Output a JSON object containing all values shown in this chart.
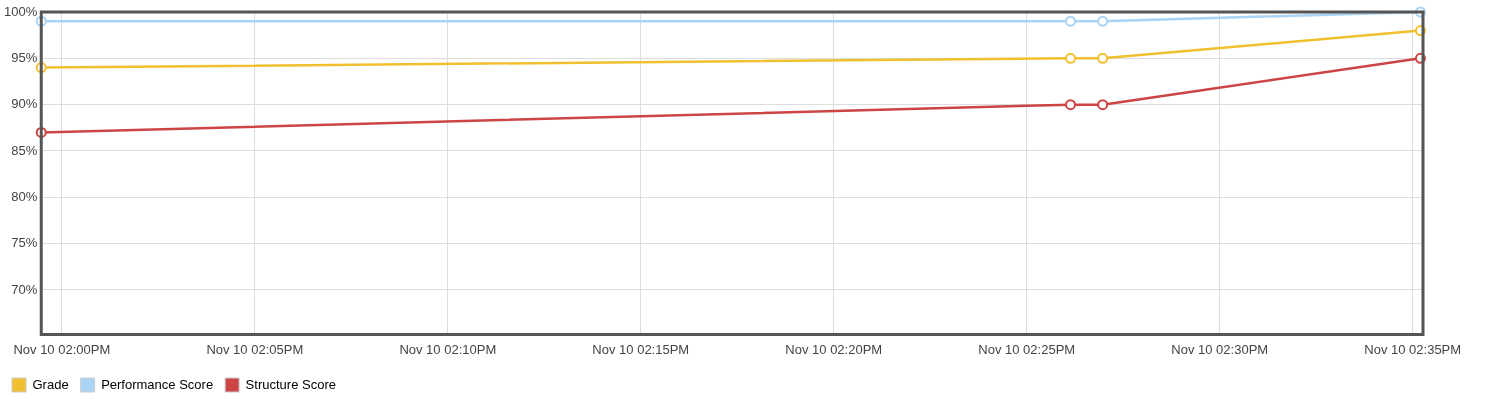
{
  "chart_data": {
    "type": "line",
    "x": [
      "--11-10T13:59:28",
      "--11-10T14:26:08",
      "--11-10T14:26:58",
      "--11-10T14:35:12"
    ],
    "series": [
      {
        "name": "Grade",
        "color": "#f0c030",
        "values": [
          94,
          95,
          95,
          98
        ]
      },
      {
        "name": "Performance Score",
        "color": "#aad4f5",
        "values": [
          99,
          99,
          99,
          100
        ]
      },
      {
        "name": "Structure Score",
        "color": "#cc4444",
        "values": [
          87,
          90,
          90,
          95
        ]
      }
    ],
    "xlim": [
      "--11-10T13:59:28",
      "--11-10T14:35:16"
    ],
    "xticks": [
      {
        "value": "--11-10T14:00",
        "label": "Nov 10 02:00PM"
      },
      {
        "value": "--11-10T14:05",
        "label": "Nov 10 02:05PM"
      },
      {
        "value": "--11-10T14:10",
        "label": "Nov 10 02:10PM"
      },
      {
        "value": "--11-10T14:15",
        "label": "Nov 10 02:15PM"
      },
      {
        "value": "--11-10T14:20",
        "label": "Nov 10 02:20PM"
      },
      {
        "value": "--11-10T14:25",
        "label": "Nov 10 02:25PM"
      },
      {
        "value": "--11-10T14:30",
        "label": "Nov 10 02:30PM"
      },
      {
        "value": "--11-10T14:35",
        "label": "Nov 10 02:35PM"
      }
    ],
    "ylim": [
      65.2,
      100
    ],
    "yticks": [
      {
        "value": 70,
        "label": "70%"
      },
      {
        "value": 75,
        "label": "75%"
      },
      {
        "value": 80,
        "label": "80%"
      },
      {
        "value": 85,
        "label": "85%"
      },
      {
        "value": 90,
        "label": "90%"
      },
      {
        "value": 95,
        "label": "95%"
      },
      {
        "value": 100,
        "label": "100%"
      }
    ],
    "grid": true,
    "legend": "bottom left",
    "marker": "circle",
    "line_style": "solid"
  }
}
